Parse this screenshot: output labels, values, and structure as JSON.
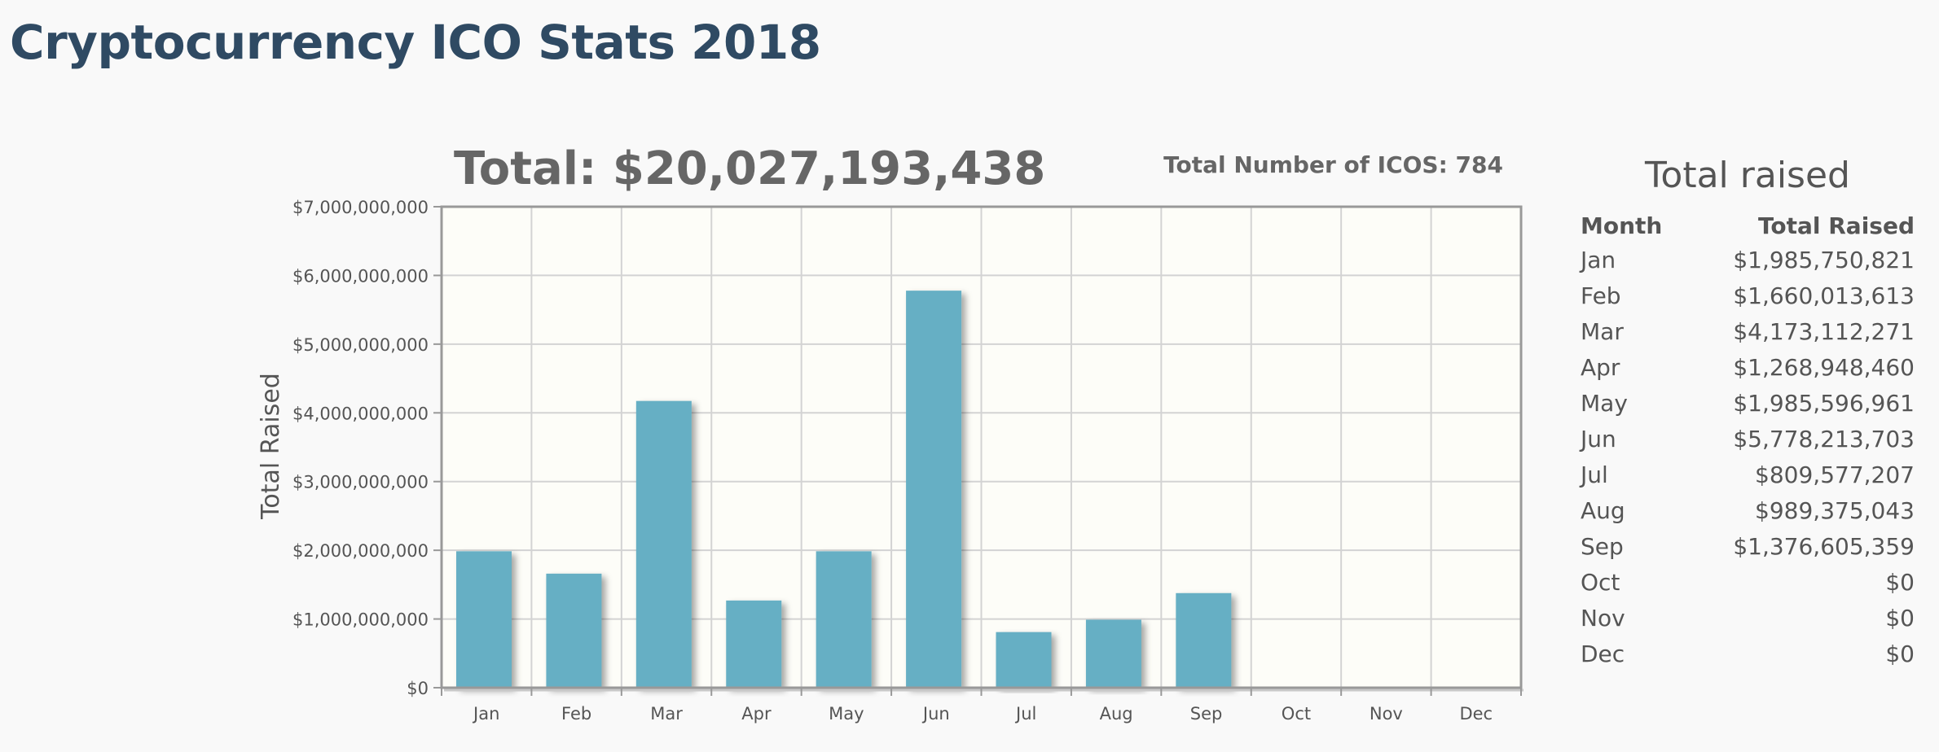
{
  "page": {
    "title": "Cryptocurrency ICO Stats 2018"
  },
  "chart_data": {
    "type": "bar",
    "title": "Total: $20,027,193,438",
    "subtitle": "Total Number of ICOS: 784",
    "xlabel": "",
    "ylabel": "Total Raised",
    "categories": [
      "Jan",
      "Feb",
      "Mar",
      "Apr",
      "May",
      "Jun",
      "Jul",
      "Aug",
      "Sep",
      "Oct",
      "Nov",
      "Dec"
    ],
    "values": [
      1985750821,
      1660013613,
      4173112271,
      1268948460,
      1985596961,
      5778213703,
      809577207,
      989375043,
      1376605359,
      0,
      0,
      0
    ],
    "ylim": [
      0,
      7000000000
    ],
    "yticks": [
      0,
      1000000000,
      2000000000,
      3000000000,
      4000000000,
      5000000000,
      6000000000,
      7000000000
    ],
    "ytick_labels": [
      "$0",
      "$1,000,000,000",
      "$2,000,000,000",
      "$3,000,000,000",
      "$4,000,000,000",
      "$5,000,000,000",
      "$6,000,000,000",
      "$7,000,000,000"
    ],
    "grid": true,
    "bar_color": "#66afc4",
    "plot_background": "#fdfdf8"
  },
  "table": {
    "heading": "Total raised",
    "headers": {
      "month": "Month",
      "raised": "Total Raised"
    },
    "rows": [
      {
        "month": "Jan",
        "raised": "$1,985,750,821"
      },
      {
        "month": "Feb",
        "raised": "$1,660,013,613"
      },
      {
        "month": "Mar",
        "raised": "$4,173,112,271"
      },
      {
        "month": "Apr",
        "raised": "$1,268,948,460"
      },
      {
        "month": "May",
        "raised": "$1,985,596,961"
      },
      {
        "month": "Jun",
        "raised": "$5,778,213,703"
      },
      {
        "month": "Jul",
        "raised": "$809,577,207"
      },
      {
        "month": "Aug",
        "raised": "$989,375,043"
      },
      {
        "month": "Sep",
        "raised": "$1,376,605,359"
      },
      {
        "month": "Oct",
        "raised": "$0"
      },
      {
        "month": "Nov",
        "raised": "$0"
      },
      {
        "month": "Dec",
        "raised": "$0"
      }
    ]
  }
}
